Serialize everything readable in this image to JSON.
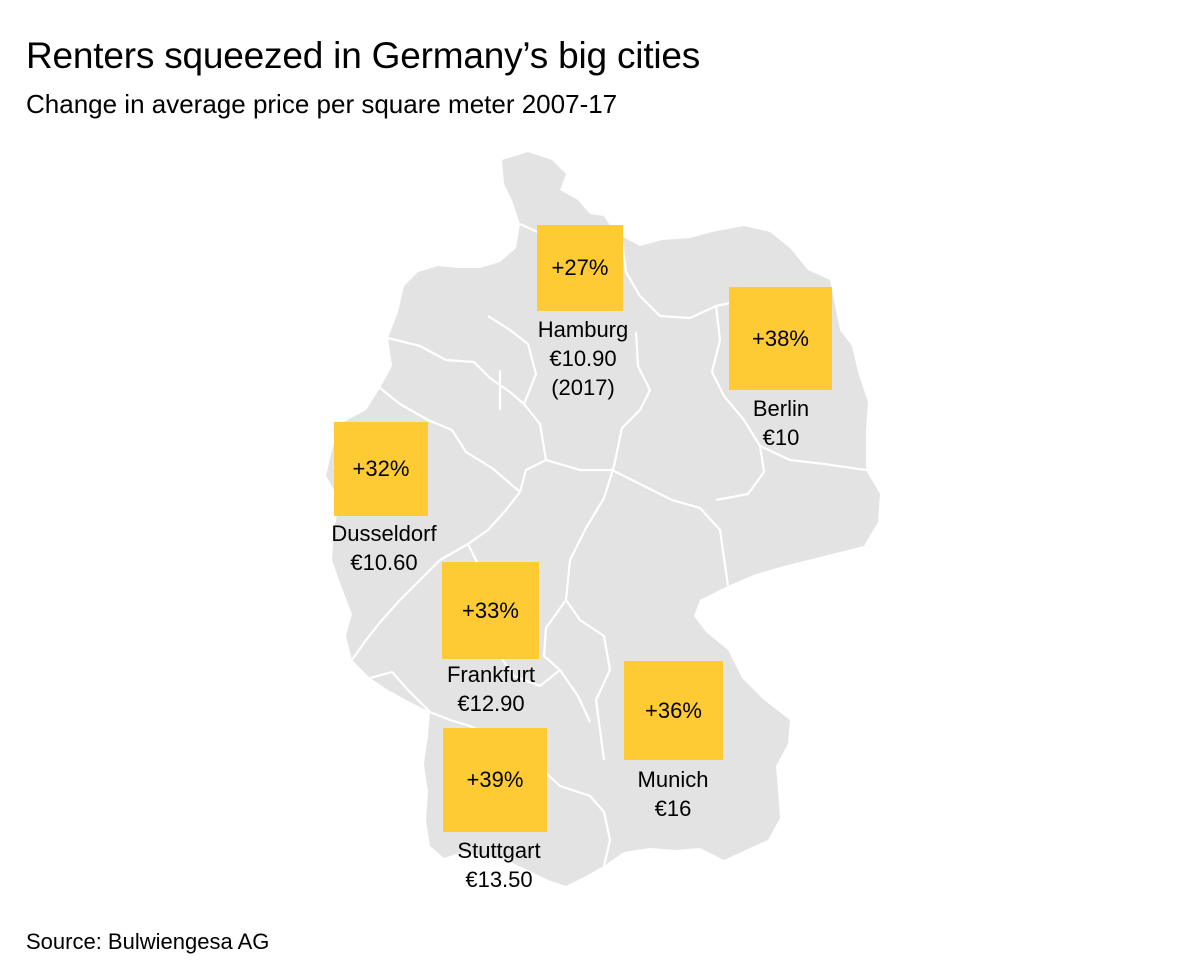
{
  "title": "Renters squeezed in Germany’s big cities",
  "subtitle": "Change in average price per square meter 2007-17",
  "source": "Source: Bulwiengesa AG",
  "colors": {
    "map_fill": "#E3E3E3",
    "border": "#FFFFFF",
    "box": "#FFCB35",
    "text": "#000000"
  },
  "cities": [
    {
      "key": "hamburg",
      "name": "Hamburg",
      "change": "+27%",
      "price": "€10.90",
      "note": "(2017)"
    },
    {
      "key": "berlin",
      "name": "Berlin",
      "change": "+38%",
      "price": "€10",
      "note": ""
    },
    {
      "key": "dusseldorf",
      "name": "Dusseldorf",
      "change": "+32%",
      "price": "€10.60",
      "note": ""
    },
    {
      "key": "frankfurt",
      "name": "Frankfurt",
      "change": "+33%",
      "price": "€12.90",
      "note": ""
    },
    {
      "key": "munich",
      "name": "Munich",
      "change": "+36%",
      "price": "€16",
      "note": ""
    },
    {
      "key": "stuttgart",
      "name": "Stuttgart",
      "change": "+39%",
      "price": "€13.50",
      "note": ""
    }
  ]
}
